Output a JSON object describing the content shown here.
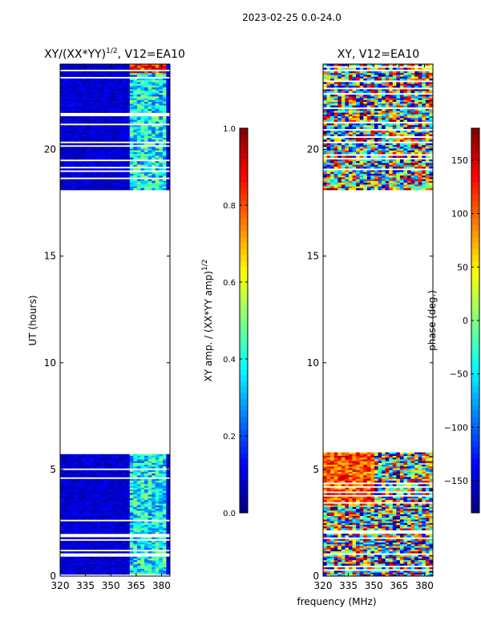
{
  "suptitle": "2023-02-25 0.0-24.0",
  "xlabel": "frequency (MHz)",
  "colormap": [
    "#00007f",
    "#0000ff",
    "#007fff",
    "#00ffff",
    "#7fff7f",
    "#ffff00",
    "#ff7f00",
    "#ff0000",
    "#7f0000"
  ],
  "chart_data": [
    {
      "type": "heatmap",
      "title_base": "XY/(XX*YY)",
      "title_exp": "1/2",
      "title_tail": ", V12=EA10",
      "ylabel": "UT (hours)",
      "xlim": [
        320,
        385
      ],
      "ylim": [
        0,
        24
      ],
      "xticks": [
        320,
        335,
        350,
        365,
        380
      ],
      "yticks": [
        0,
        5,
        10,
        15,
        20
      ],
      "data_ranges_hours": [
        [
          0,
          5.8
        ],
        [
          18.1,
          24
        ]
      ],
      "mode": "amp",
      "colorbar": {
        "label_base": "XY amp. / (XX*YY amp)",
        "label_exp": "1/2",
        "range": [
          0.0,
          1.0
        ],
        "ticks": [
          "0.0",
          "0.2",
          "0.4",
          "0.6",
          "0.8",
          "1.0"
        ],
        "tick_values": [
          0.0,
          0.2,
          0.4,
          0.6,
          0.8,
          1.0
        ]
      }
    },
    {
      "type": "heatmap",
      "title": "XY, V12=EA10",
      "xlim": [
        320,
        385
      ],
      "ylim": [
        0,
        24
      ],
      "xticks": [
        320,
        335,
        350,
        365,
        380
      ],
      "yticks": [
        0,
        5,
        10,
        15,
        20
      ],
      "data_ranges_hours": [
        [
          0,
          5.8
        ],
        [
          18.1,
          24
        ]
      ],
      "mode": "phase",
      "colorbar": {
        "label": "phase (deg.)",
        "range": [
          -180,
          180
        ],
        "ticks": [
          "−150",
          "−100",
          "−50",
          "0",
          "50",
          "100",
          "150"
        ],
        "tick_values": [
          -150,
          -100,
          -50,
          0,
          50,
          100,
          150
        ]
      }
    }
  ]
}
